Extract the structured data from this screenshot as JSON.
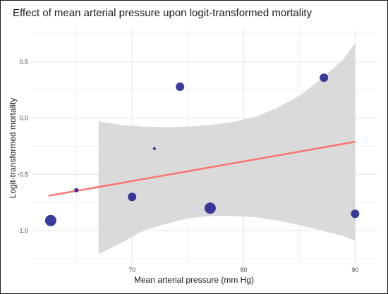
{
  "chart_data": {
    "type": "scatter",
    "title": "Effect of mean arterial pressure upon logit-transformed mortality",
    "xlabel": "Mean arterial pressure (mm Hg)",
    "ylabel": "Logit-transformed mortality",
    "xlim": [
      61,
      92
    ],
    "ylim": [
      -1.3,
      0.8
    ],
    "xticks": [
      70,
      80,
      90
    ],
    "yticks": [
      0.5,
      0.0,
      -0.5,
      -1.0
    ],
    "ytick_labels": [
      "0.5",
      "0.0",
      "-0.5",
      "-1.0"
    ],
    "xtick_labels": [
      "70",
      "80",
      "90"
    ],
    "grid": true,
    "points": [
      {
        "x": 62.7,
        "y": -0.91,
        "weight": 8
      },
      {
        "x": 65.0,
        "y": -0.64,
        "weight": 3
      },
      {
        "x": 70.0,
        "y": -0.7,
        "weight": 6
      },
      {
        "x": 72.0,
        "y": -0.27,
        "weight": 2
      },
      {
        "x": 74.3,
        "y": 0.28,
        "weight": 6
      },
      {
        "x": 77.0,
        "y": -0.8,
        "weight": 8
      },
      {
        "x": 87.2,
        "y": 0.36,
        "weight": 6
      },
      {
        "x": 90.0,
        "y": -0.85,
        "weight": 6
      }
    ],
    "regression_line": {
      "x": [
        62.5,
        90.0
      ],
      "y": [
        -0.69,
        -0.21
      ]
    },
    "confidence_band": {
      "x": [
        67,
        69,
        71,
        73,
        75,
        77,
        79,
        81,
        83,
        85,
        87,
        89,
        90
      ],
      "upper": [
        -0.03,
        -0.06,
        -0.075,
        -0.08,
        -0.075,
        -0.06,
        -0.035,
        0.01,
        0.09,
        0.2,
        0.35,
        0.53,
        0.67
      ],
      "lower": [
        -1.21,
        -1.11,
        -1.0,
        -0.94,
        -0.89,
        -0.87,
        -0.87,
        -0.88,
        -0.91,
        -0.95,
        -1.0,
        -1.05,
        -1.09
      ]
    },
    "colors": {
      "points": "#1a1a8c",
      "line": "#f8766d",
      "band": "#d6d6d6",
      "grid": "#e4e4e4"
    }
  }
}
